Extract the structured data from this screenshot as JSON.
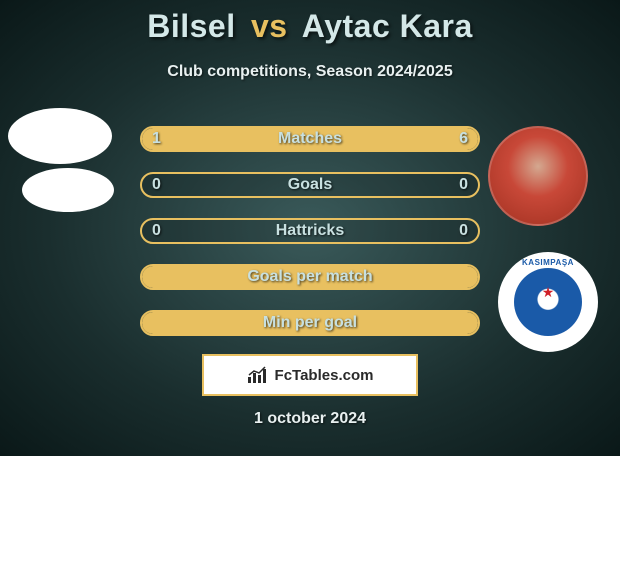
{
  "title": {
    "player1": "Bilsel",
    "vs": "vs",
    "player2": "Aytac Kara"
  },
  "subtitle": "Club competitions, Season 2024/2025",
  "stats": [
    {
      "label": "Matches",
      "left_val": "1",
      "right_val": "6",
      "left_pct": 14,
      "right_pct": 86,
      "show_values": true
    },
    {
      "label": "Goals",
      "left_val": "0",
      "right_val": "0",
      "left_pct": 0,
      "right_pct": 0,
      "show_values": true
    },
    {
      "label": "Hattricks",
      "left_val": "0",
      "right_val": "0",
      "left_pct": 0,
      "right_pct": 0,
      "show_values": true
    },
    {
      "label": "Goals per match",
      "left_val": "",
      "right_val": "",
      "left_pct": 100,
      "right_pct": 0,
      "show_values": false,
      "full": true
    },
    {
      "label": "Min per goal",
      "left_val": "",
      "right_val": "",
      "left_pct": 100,
      "right_pct": 0,
      "show_values": false,
      "full": true
    }
  ],
  "footer_brand": "FcTables.com",
  "date": "1 october 2024",
  "colors": {
    "accent": "#e8c060",
    "text_light": "#c8e0e0",
    "bg_radial_inner": "#3a5a5a",
    "bg_radial_outer": "#0a1818"
  },
  "badge_right_text": "KASIMPAŞA"
}
